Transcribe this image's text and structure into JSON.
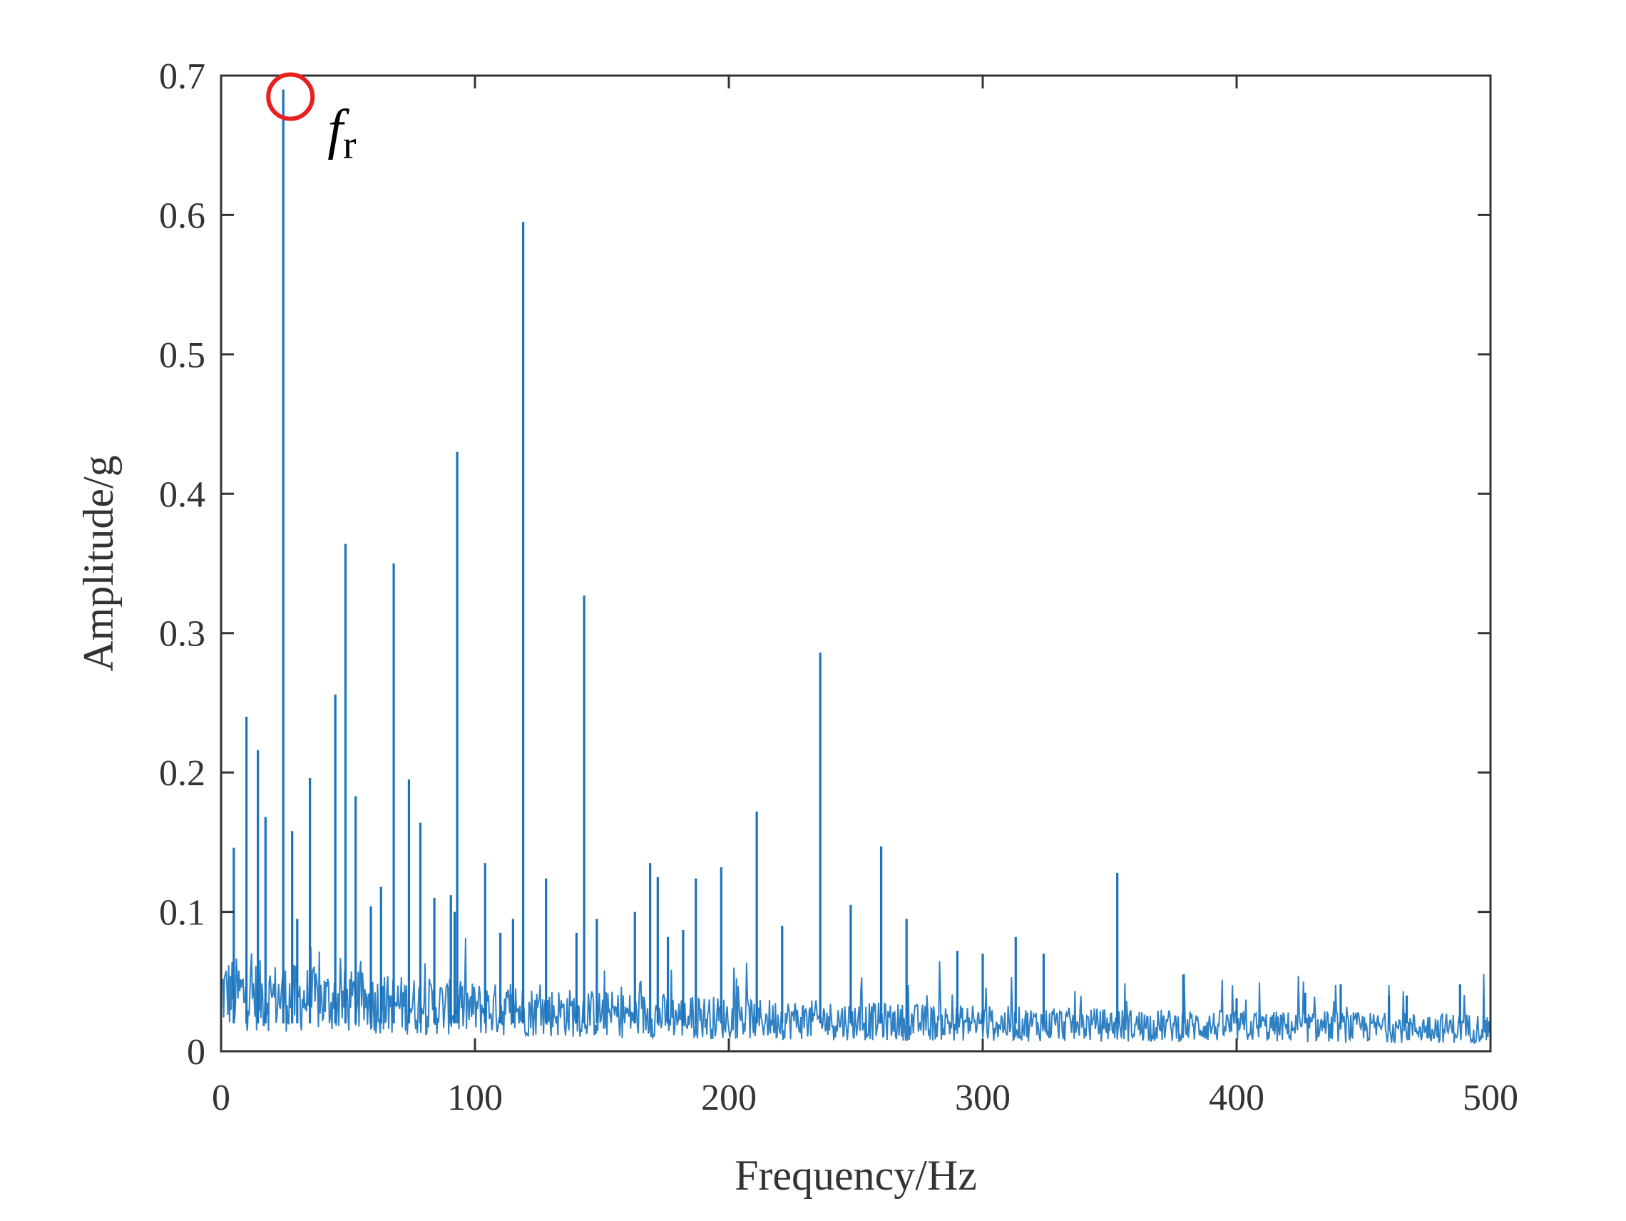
{
  "chart_data": {
    "type": "line",
    "title": "",
    "xlabel": "Frequency/Hz",
    "ylabel": "Amplitude/g",
    "xlim": [
      0,
      500
    ],
    "ylim": [
      0,
      0.7
    ],
    "x_ticks": [
      "0",
      "100",
      "200",
      "300",
      "400",
      "500"
    ],
    "y_ticks": [
      "0",
      "0.1",
      "0.2",
      "0.3",
      "0.4",
      "0.5",
      "0.6",
      "0.7"
    ],
    "grid": false,
    "legend": "none",
    "line_color": "#1a73be",
    "series": [
      {
        "x": [
          24.5,
          119,
          93,
          49,
          68,
          143,
          45,
          236,
          10,
          14.5,
          35,
          74,
          17.5,
          53,
          78.5,
          28,
          211,
          5,
          260,
          104,
          353,
          169,
          197,
          172,
          128,
          187,
          90.5,
          92,
          84,
          63,
          270,
          248,
          221,
          59,
          30,
          140,
          148,
          163,
          182,
          176,
          115,
          110,
          290,
          313,
          324,
          300,
          379,
          427,
          441,
          467,
          488,
          400,
          460
        ],
        "y": [
          0.69,
          0.595,
          0.43,
          0.364,
          0.35,
          0.327,
          0.256,
          0.286,
          0.24,
          0.216,
          0.196,
          0.195,
          0.168,
          0.183,
          0.164,
          0.158,
          0.172,
          0.146,
          0.147,
          0.135,
          0.128,
          0.135,
          0.132,
          0.125,
          0.124,
          0.124,
          0.112,
          0.1,
          0.11,
          0.118,
          0.095,
          0.105,
          0.09,
          0.104,
          0.095,
          0.085,
          0.095,
          0.1,
          0.087,
          0.082,
          0.095,
          0.085,
          0.072,
          0.082,
          0.07,
          0.07,
          0.055,
          0.042,
          0.048,
          0.04,
          0.048,
          0.038,
          0.04
        ]
      }
    ],
    "annotations": [
      {
        "label_main": "f",
        "label_sub": "r",
        "x": 24.5,
        "y": 0.69,
        "marker": "circle",
        "marker_color": "#e8201e"
      }
    ]
  }
}
